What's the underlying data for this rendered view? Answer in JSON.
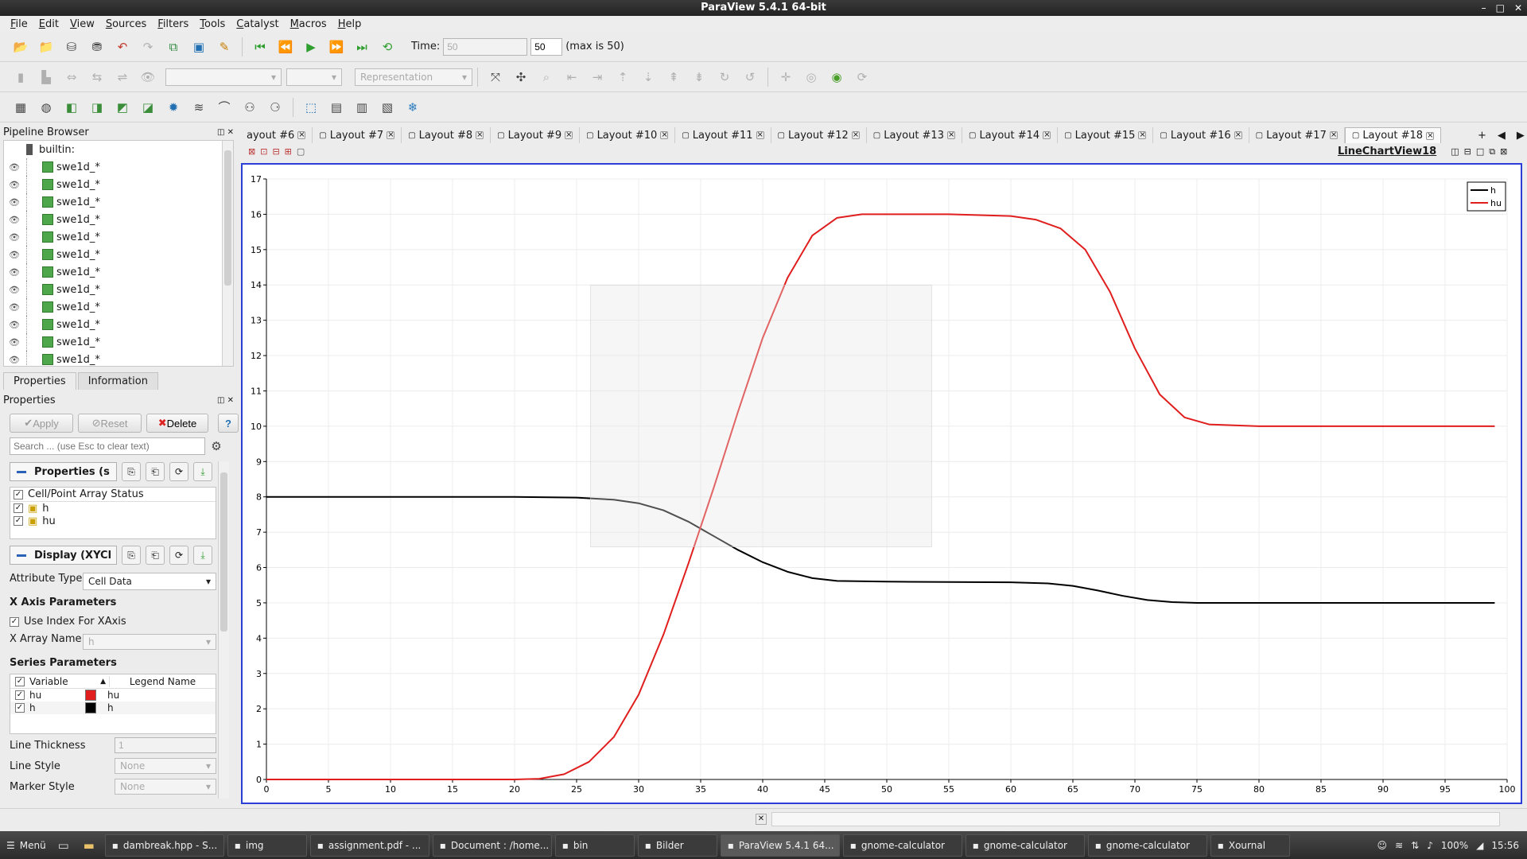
{
  "window": {
    "title": "ParaView 5.4.1 64-bit",
    "controls": [
      "–",
      "□",
      "✕"
    ]
  },
  "menu": [
    "File",
    "Edit",
    "View",
    "Sources",
    "Filters",
    "Tools",
    "Catalyst",
    "Macros",
    "Help"
  ],
  "toolbar": {
    "time_label": "Time:",
    "time_value": "50",
    "timestep_value": "50",
    "max_label": "(max is 50)",
    "representation_placeholder": "Representation"
  },
  "pipeline": {
    "title": "Pipeline Browser",
    "root": "builtin:",
    "items": [
      "swe1d_*",
      "swe1d_*",
      "swe1d_*",
      "swe1d_*",
      "swe1d_*",
      "swe1d_*",
      "swe1d_*",
      "swe1d_*",
      "swe1d_*",
      "swe1d_*",
      "swe1d_*",
      "swe1d_*"
    ]
  },
  "panel_tabs": [
    "Properties",
    "Information"
  ],
  "properties": {
    "title": "Properties",
    "apply": "Apply",
    "reset": "Reset",
    "delete": "Delete",
    "help": "?",
    "search_placeholder": "Search ... (use Esc to clear text)",
    "group_properties": "Properties (s",
    "array_status_header": "Cell/Point Array Status",
    "arrays": [
      "h",
      "hu"
    ],
    "group_display": "Display (XYCl",
    "attribute_type_label": "Attribute Type",
    "attribute_type_value": "Cell Data",
    "x_axis_header": "X Axis Parameters",
    "use_index_label": "Use Index For XAxis",
    "x_array_label": "X Array Name",
    "x_array_value": "h",
    "series_header": "Series Parameters",
    "series_col_variable": "Variable",
    "series_col_legend": "Legend Name",
    "series_rows": [
      {
        "variable": "hu",
        "legend": "hu",
        "color": "#e01e1e"
      },
      {
        "variable": "h",
        "legend": "h",
        "color": "#000000"
      }
    ],
    "line_thickness_label": "Line Thickness",
    "line_thickness_value": "1",
    "line_style_label": "Line Style",
    "line_style_value": "None",
    "marker_style_label": "Marker Style",
    "marker_style_value": "None"
  },
  "layout_tabs": [
    "ayout #6",
    "Layout #7",
    "Layout #8",
    "Layout #9",
    "Layout #10",
    "Layout #11",
    "Layout #12",
    "Layout #13",
    "Layout #14",
    "Layout #15",
    "Layout #16",
    "Layout #17",
    "Layout #18"
  ],
  "layout_add": "+",
  "view_name": "LineChartView18",
  "chart_data": {
    "type": "line",
    "xlim": [
      0,
      100
    ],
    "ylim": [
      0,
      17
    ],
    "xticks": [
      0,
      5,
      10,
      15,
      20,
      25,
      30,
      35,
      40,
      45,
      50,
      55,
      60,
      65,
      70,
      75,
      80,
      85,
      90,
      95,
      100
    ],
    "yticks": [
      0,
      1,
      2,
      3,
      4,
      5,
      6,
      7,
      8,
      9,
      10,
      11,
      12,
      13,
      14,
      15,
      16,
      17
    ],
    "grid": true,
    "legend": "top-right",
    "series": [
      {
        "name": "h",
        "color": "#000000",
        "x": [
          0,
          20,
          25,
          28,
          30,
          32,
          34,
          36,
          38,
          40,
          42,
          44,
          46,
          50,
          60,
          63,
          65,
          67,
          69,
          71,
          73,
          75,
          80,
          90,
          99
        ],
        "y": [
          8,
          8,
          7.98,
          7.92,
          7.82,
          7.62,
          7.3,
          6.9,
          6.5,
          6.15,
          5.88,
          5.7,
          5.62,
          5.6,
          5.58,
          5.55,
          5.48,
          5.35,
          5.2,
          5.08,
          5.02,
          5.0,
          5.0,
          5.0,
          5.0
        ]
      },
      {
        "name": "hu",
        "color": "#e01e1e",
        "x": [
          0,
          20,
          22,
          24,
          26,
          28,
          30,
          32,
          34,
          36,
          38,
          40,
          42,
          44,
          46,
          48,
          50,
          55,
          60,
          62,
          64,
          66,
          68,
          70,
          72,
          74,
          76,
          80,
          90,
          99
        ],
        "y": [
          0,
          0,
          0.02,
          0.15,
          0.5,
          1.2,
          2.4,
          4.1,
          6.1,
          8.2,
          10.4,
          12.5,
          14.2,
          15.4,
          15.9,
          16.0,
          16.0,
          16.0,
          15.95,
          15.85,
          15.6,
          15.0,
          13.8,
          12.2,
          10.9,
          10.25,
          10.05,
          10.0,
          10.0,
          10.0
        ]
      }
    ]
  },
  "taskbar": {
    "menu": "Menü",
    "items": [
      "dambreak.hpp - S...",
      "img",
      "assignment.pdf - ...",
      "Document : /home...",
      "bin",
      "Bilder",
      "ParaView 5.4.1 64...",
      "gnome-calculator",
      "gnome-calculator",
      "gnome-calculator",
      "Xournal"
    ],
    "battery": "100%",
    "clock": "15:56"
  }
}
